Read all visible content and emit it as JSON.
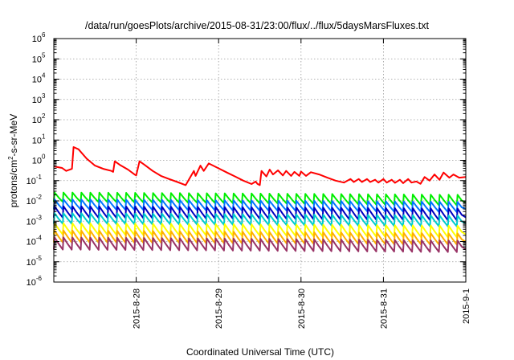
{
  "chart_data": {
    "type": "line",
    "title": "/data/run/goesPlots/archive/2015-08-31/23:00/flux/../flux/5daysMarsFluxes.txt",
    "xlabel": "Coordinated Universal Time (UTC)",
    "ylabel_parts": [
      "protons/cm",
      "2",
      "-s-sr-MeV"
    ],
    "y_scale": "log",
    "ylim_exponents": [
      -6,
      6
    ],
    "y_ticks": [
      {
        "base": "10",
        "exp": "-6"
      },
      {
        "base": "10",
        "exp": "-5"
      },
      {
        "base": "10",
        "exp": "-4"
      },
      {
        "base": "10",
        "exp": "-3"
      },
      {
        "base": "10",
        "exp": "-2"
      },
      {
        "base": "10",
        "exp": "-1"
      },
      {
        "base": "10",
        "exp": "0"
      },
      {
        "base": "10",
        "exp": "1"
      },
      {
        "base": "10",
        "exp": "2"
      },
      {
        "base": "10",
        "exp": "3"
      },
      {
        "base": "10",
        "exp": "4"
      },
      {
        "base": "10",
        "exp": "5"
      },
      {
        "base": "10",
        "exp": "6"
      }
    ],
    "xlim_days": [
      27.0,
      32.0
    ],
    "x_ticks": [
      {
        "label": "2015-8-28",
        "day": 28
      },
      {
        "label": "2015-8-29",
        "day": 29
      },
      {
        "label": "2015-8-30",
        "day": 30
      },
      {
        "label": "2015-8-31",
        "day": 31
      },
      {
        "label": "2015-9-1",
        "day": 32
      }
    ],
    "grid": true,
    "legend": "none",
    "series": [
      {
        "color": "#ff0000",
        "points": [
          [
            27.0,
            0.5
          ],
          [
            27.1,
            0.42
          ],
          [
            27.15,
            0.3
          ],
          [
            27.22,
            0.38
          ],
          [
            27.24,
            4.5
          ],
          [
            27.3,
            3.5
          ],
          [
            27.4,
            1.2
          ],
          [
            27.5,
            0.55
          ],
          [
            27.6,
            0.38
          ],
          [
            27.7,
            0.3
          ],
          [
            27.72,
            0.27
          ],
          [
            27.74,
            0.9
          ],
          [
            27.8,
            0.6
          ],
          [
            27.9,
            0.35
          ],
          [
            27.98,
            0.2
          ],
          [
            28.0,
            0.18
          ],
          [
            28.04,
            0.9
          ],
          [
            28.1,
            0.6
          ],
          [
            28.2,
            0.3
          ],
          [
            28.3,
            0.17
          ],
          [
            28.4,
            0.12
          ],
          [
            28.5,
            0.085
          ],
          [
            28.6,
            0.06
          ],
          [
            28.7,
            0.3
          ],
          [
            28.72,
            0.17
          ],
          [
            28.78,
            0.55
          ],
          [
            28.82,
            0.3
          ],
          [
            28.88,
            0.7
          ],
          [
            29.0,
            0.4
          ],
          [
            29.1,
            0.25
          ],
          [
            29.2,
            0.16
          ],
          [
            29.3,
            0.1
          ],
          [
            29.4,
            0.068
          ],
          [
            29.45,
            0.09
          ],
          [
            29.47,
            0.07
          ],
          [
            29.5,
            0.06
          ],
          [
            29.52,
            0.3
          ],
          [
            29.58,
            0.16
          ],
          [
            29.62,
            0.35
          ],
          [
            29.66,
            0.2
          ],
          [
            29.72,
            0.32
          ],
          [
            29.78,
            0.18
          ],
          [
            29.82,
            0.3
          ],
          [
            29.88,
            0.17
          ],
          [
            29.92,
            0.27
          ],
          [
            29.98,
            0.17
          ],
          [
            30.0,
            0.28
          ],
          [
            30.06,
            0.17
          ],
          [
            30.12,
            0.26
          ],
          [
            30.22,
            0.2
          ],
          [
            30.32,
            0.14
          ],
          [
            30.42,
            0.1
          ],
          [
            30.52,
            0.08
          ],
          [
            30.6,
            0.12
          ],
          [
            30.64,
            0.085
          ],
          [
            30.7,
            0.12
          ],
          [
            30.74,
            0.085
          ],
          [
            30.8,
            0.12
          ],
          [
            30.84,
            0.085
          ],
          [
            30.9,
            0.11
          ],
          [
            30.94,
            0.08
          ],
          [
            31.0,
            0.12
          ],
          [
            31.04,
            0.08
          ],
          [
            31.1,
            0.11
          ],
          [
            31.14,
            0.078
          ],
          [
            31.2,
            0.11
          ],
          [
            31.24,
            0.075
          ],
          [
            31.3,
            0.12
          ],
          [
            31.34,
            0.08
          ],
          [
            31.4,
            0.09
          ],
          [
            31.45,
            0.07
          ],
          [
            31.5,
            0.15
          ],
          [
            31.56,
            0.1
          ],
          [
            31.62,
            0.2
          ],
          [
            31.68,
            0.11
          ],
          [
            31.73,
            0.25
          ],
          [
            31.8,
            0.14
          ],
          [
            31.85,
            0.2
          ],
          [
            31.92,
            0.14
          ],
          [
            32.0,
            0.15
          ]
        ]
      },
      {
        "color": "#00ee00",
        "sawtooth": {
          "start": 27.0,
          "end": 32.0,
          "n": 46,
          "peak_start": 0.026,
          "trough_start": 0.009,
          "peak_end": 0.02,
          "trough_end": 0.006
        }
      },
      {
        "color": "#0077ff",
        "sawtooth": {
          "start": 27.0,
          "end": 32.0,
          "n": 46,
          "peak_start": 0.012,
          "trough_start": 0.0038,
          "peak_end": 0.009,
          "trough_end": 0.0028
        }
      },
      {
        "color": "#0000c0",
        "sawtooth": {
          "start": 27.0,
          "end": 32.0,
          "n": 46,
          "peak_start": 0.0055,
          "trough_start": 0.0015,
          "peak_end": 0.0042,
          "trough_end": 0.0011
        }
      },
      {
        "color": "#00cccc",
        "sawtooth": {
          "start": 27.0,
          "end": 32.0,
          "n": 46,
          "peak_start": 0.0025,
          "trough_start": 0.00075,
          "peak_end": 0.0019,
          "trough_end": 0.00055
        }
      },
      {
        "color": "#ffff00",
        "sawtooth": {
          "start": 27.0,
          "end": 32.0,
          "n": 46,
          "peak_start": 0.0008,
          "trough_start": 0.00022,
          "peak_end": 0.0006,
          "trough_end": 0.00016
        }
      },
      {
        "color": "#ffb000",
        "sawtooth": {
          "start": 27.0,
          "end": 32.0,
          "n": 46,
          "peak_start": 0.00035,
          "trough_start": 9e-05,
          "peak_end": 0.00025,
          "trough_end": 7e-05
        }
      },
      {
        "color": "#993366",
        "sawtooth": {
          "start": 27.0,
          "end": 32.0,
          "n": 46,
          "peak_start": 0.00016,
          "trough_start": 4e-05,
          "peak_end": 0.00011,
          "trough_end": 3e-05
        }
      }
    ]
  }
}
